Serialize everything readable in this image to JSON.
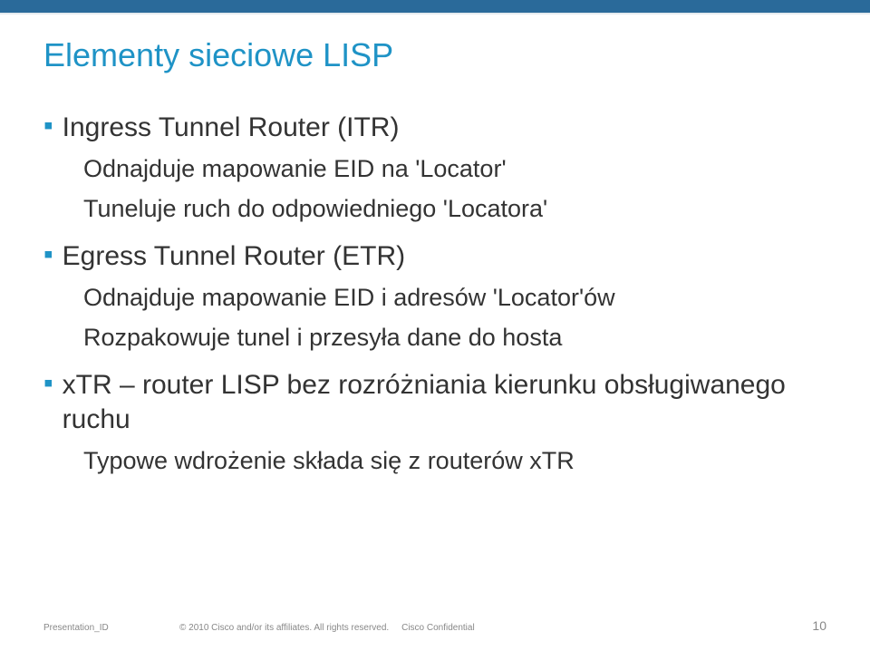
{
  "colors": {
    "top_band": "#2a6a9a",
    "title": "#1f93c6",
    "bullet_mark": "#1f93c6",
    "body_text": "#333333",
    "footer_text": "#888888",
    "background": "#ffffff"
  },
  "title": "Elementy sieciowe LISP",
  "bullets": [
    {
      "text": "Ingress Tunnel Router (ITR)",
      "sub": [
        "Odnajduje mapowanie EID na 'Locator'",
        "Tuneluje ruch do odpowiedniego 'Locatora'"
      ]
    },
    {
      "text": "Egress Tunnel Router (ETR)",
      "sub": [
        "Odnajduje mapowanie EID i adresów 'Locator'ów",
        "Rozpakowuje tunel i przesyła dane do hosta"
      ]
    },
    {
      "text": "xTR – router LISP bez rozróżniania kierunku obsługiwanego ruchu",
      "sub": [
        "Typowe wdrożenie składa się z routerów xTR"
      ]
    }
  ],
  "footer": {
    "presentation_id": "Presentation_ID",
    "copyright": "© 2010 Cisco and/or its affiliates. All rights reserved.",
    "confidential": "Cisco Confidential",
    "page_number": "10"
  }
}
